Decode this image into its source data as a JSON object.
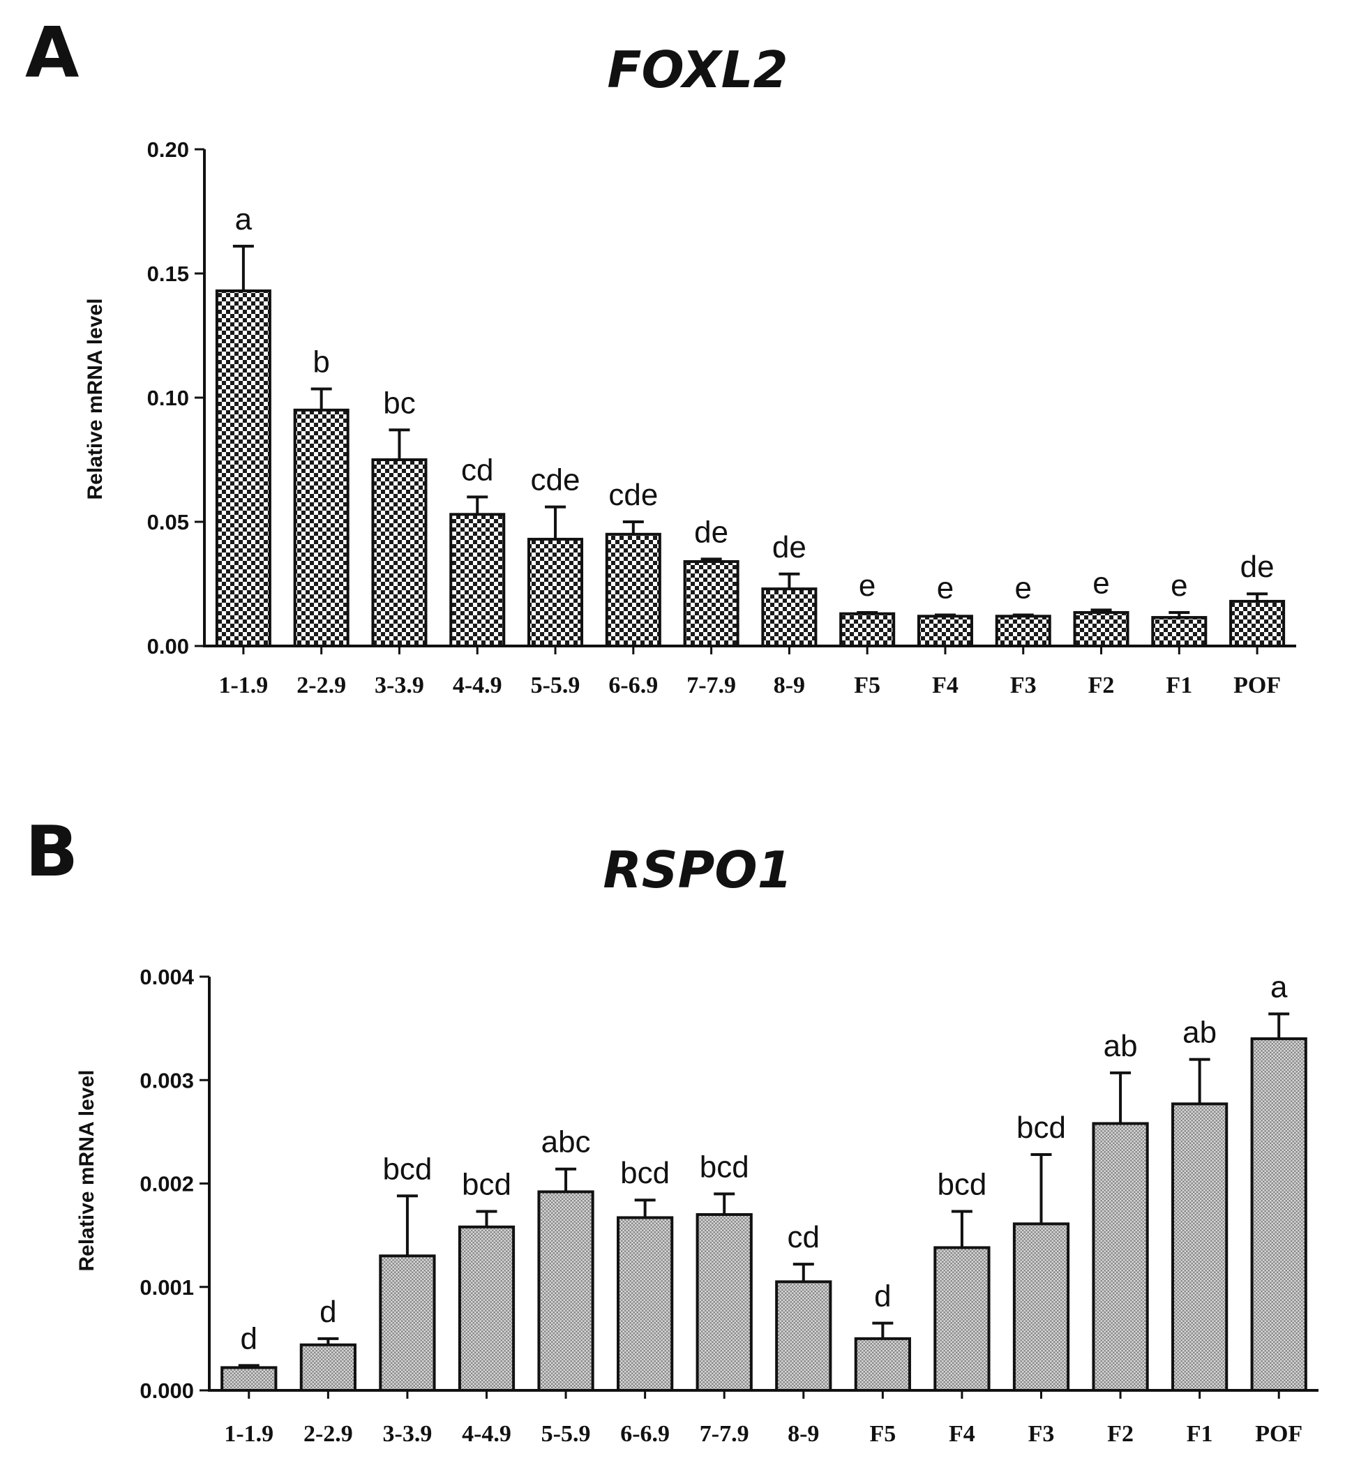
{
  "figure": {
    "panel_a_letter": "A",
    "panel_b_letter": "B"
  },
  "chart_data": [
    {
      "type": "bar",
      "title": "FOXL2",
      "xlabel": "",
      "ylabel": "Relative mRNA level",
      "ylim": [
        0,
        0.2
      ],
      "yticks": [
        0.0,
        0.05,
        0.1,
        0.15,
        0.2
      ],
      "ytick_labels": [
        "0.00",
        "0.05",
        "0.10",
        "0.15",
        "0.20"
      ],
      "categories": [
        "1-1.9",
        "2-2.9",
        "3-3.9",
        "4-4.9",
        "5-5.9",
        "6-6.9",
        "7-7.9",
        "8-9",
        "F5",
        "F4",
        "F3",
        "F2",
        "F1",
        "POF"
      ],
      "values": [
        0.143,
        0.095,
        0.075,
        0.053,
        0.043,
        0.045,
        0.034,
        0.023,
        0.013,
        0.012,
        0.012,
        0.0135,
        0.0115,
        0.018
      ],
      "errors": [
        0.018,
        0.0085,
        0.012,
        0.007,
        0.013,
        0.005,
        0.001,
        0.006,
        0.0005,
        0.0005,
        0.0005,
        0.001,
        0.002,
        0.003
      ],
      "annotations": [
        "a",
        "b",
        "bc",
        "cd",
        "cde",
        "cde",
        "de",
        "de",
        "e",
        "e",
        "e",
        "e",
        "e",
        "de"
      ],
      "pattern": "checkered",
      "grid": false
    },
    {
      "type": "bar",
      "title": "RSPO1",
      "xlabel": "",
      "ylabel": "Relative mRNA level",
      "ylim": [
        0,
        0.004
      ],
      "yticks": [
        0.0,
        0.001,
        0.002,
        0.003,
        0.004
      ],
      "ytick_labels": [
        "0.000",
        "0.001",
        "0.002",
        "0.003",
        "0.004"
      ],
      "categories": [
        "1-1.9",
        "2-2.9",
        "3-3.9",
        "4-4.9",
        "5-5.9",
        "6-6.9",
        "7-7.9",
        "8-9",
        "F5",
        "F4",
        "F3",
        "F2",
        "F1",
        "POF"
      ],
      "values": [
        0.00022,
        0.00044,
        0.0013,
        0.00158,
        0.00192,
        0.00167,
        0.0017,
        0.00105,
        0.0005,
        0.00138,
        0.00161,
        0.00258,
        0.00277,
        0.0034
      ],
      "errors": [
        2e-05,
        6e-05,
        0.00058,
        0.00015,
        0.00022,
        0.00017,
        0.0002,
        0.00017,
        0.00015,
        0.00035,
        0.00067,
        0.00049,
        0.00043,
        0.00024
      ],
      "annotations": [
        "d",
        "d",
        "bcd",
        "bcd",
        "abc",
        "bcd",
        "bcd",
        "cd",
        "d",
        "bcd",
        "bcd",
        "ab",
        "ab",
        "a"
      ],
      "pattern": "fine-grid",
      "grid": false
    }
  ]
}
